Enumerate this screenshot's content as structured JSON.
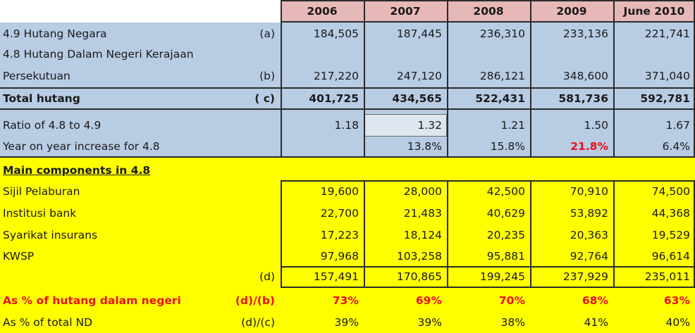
{
  "header": {
    "years": [
      "2006",
      "2007",
      "2008",
      "2009",
      "June 2010"
    ]
  },
  "hutang_negara": {
    "label": "4.9 Hutang Negara",
    "ref": "(a)",
    "values": [
      "184,505",
      "187,445",
      "236,310",
      "233,136",
      "221,741"
    ]
  },
  "hutang_dalam_negeri": {
    "label_line1": "4.8 Hutang Dalam Negeri Kerajaan",
    "label_line2": "Persekutuan",
    "ref": "(b)",
    "values": [
      "217,220",
      "247,120",
      "286,121",
      "348,600",
      "371,040"
    ]
  },
  "total_hutang": {
    "label": "Total hutang",
    "ref": "( c)",
    "values": [
      "401,725",
      "434,565",
      "522,431",
      "581,736",
      "592,781"
    ]
  },
  "ratio": {
    "label": "Ratio of 4.8 to 4.9",
    "values": [
      "1.18",
      "1.32",
      "1.21",
      "1.50",
      "1.67"
    ]
  },
  "yoy": {
    "label": "Year on year increase for 4.8",
    "values": [
      "",
      "13.8%",
      "15.8%",
      "21.8%",
      "6.4%"
    ]
  },
  "components": {
    "title": "Main components in 4.8",
    "items": [
      {
        "label": "Sijil Pelaburan",
        "values": [
          "19,600",
          "28,000",
          "42,500",
          "70,910",
          "74,500"
        ]
      },
      {
        "label": "Institusi bank",
        "values": [
          "22,700",
          "21,483",
          "40,629",
          "53,892",
          "44,368"
        ]
      },
      {
        "label": "Syarikat insurans",
        "values": [
          "17,223",
          "18,124",
          "20,235",
          "20,363",
          "19,529"
        ]
      },
      {
        "label": "KWSP",
        "values": [
          "97,968",
          "103,258",
          "95,881",
          "92,764",
          "96,614"
        ]
      }
    ],
    "subtotal": {
      "ref": "(d)",
      "values": [
        "157,491",
        "170,865",
        "199,245",
        "237,929",
        "235,011"
      ]
    }
  },
  "pct_dalam_negeri": {
    "label": "As % of hutang dalam negeri",
    "ref": "(d)/(b)",
    "values": [
      "73%",
      "69%",
      "70%",
      "68%",
      "63%"
    ]
  },
  "pct_total_nd": {
    "label": "As % of total ND",
    "ref": "(d)/(c)",
    "values": [
      "39%",
      "39%",
      "38%",
      "41%",
      "40%"
    ]
  },
  "colors": {
    "blue_fill": "#b8cce4",
    "yellow_fill": "#ffff00",
    "header_fill": "#e6b8b8",
    "highlight_red": "#e8131b"
  }
}
